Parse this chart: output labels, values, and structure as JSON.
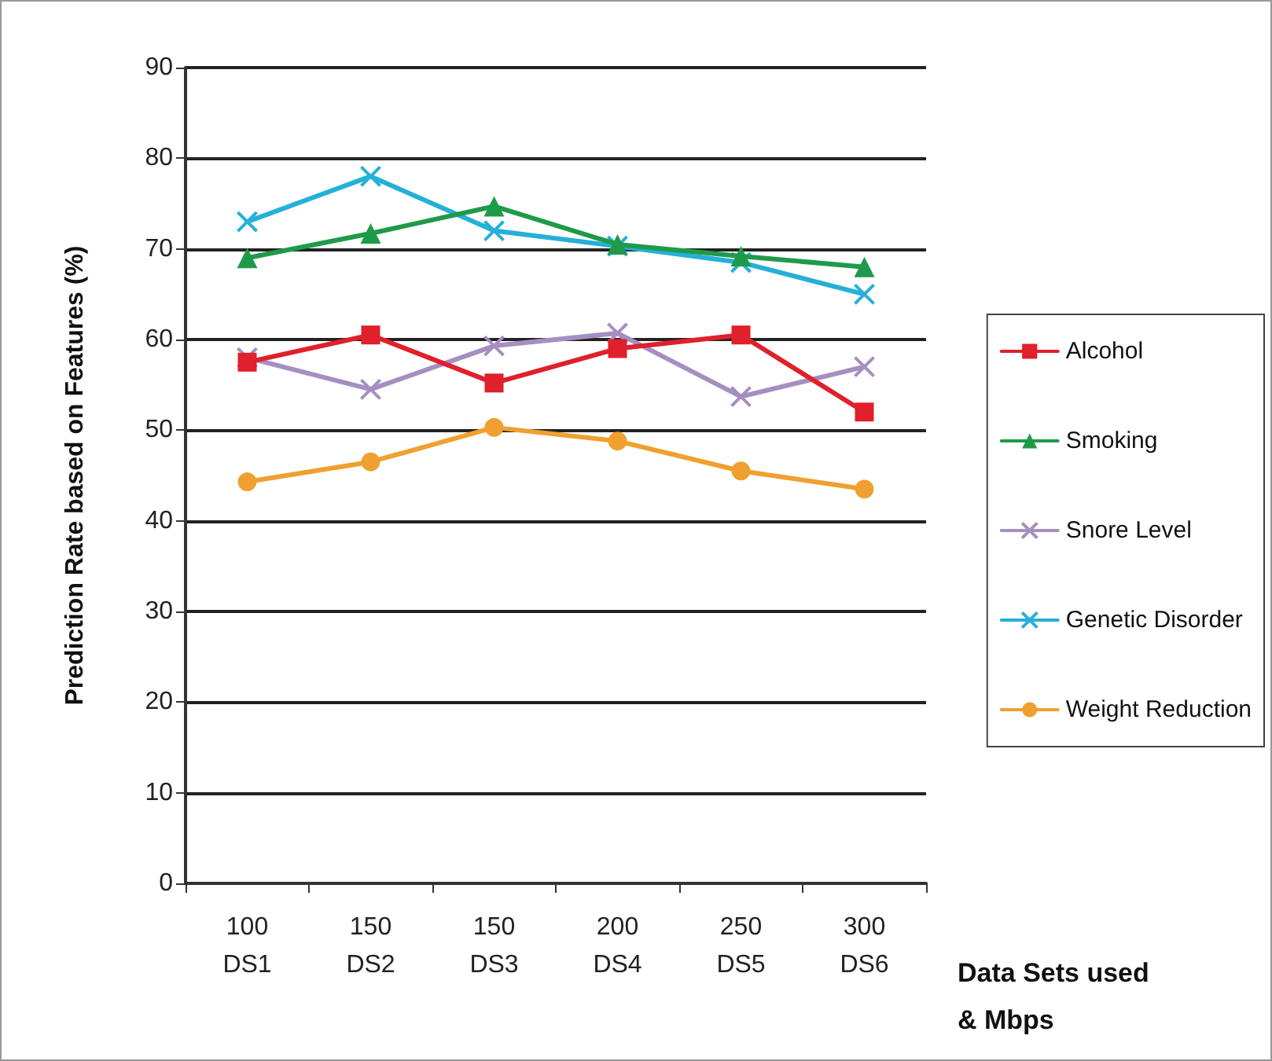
{
  "chart_data": {
    "type": "line",
    "ylabel": "Prediction Rate based on Features (%)",
    "xlabel": "Data Sets used\n& Mbps",
    "categories": [
      "100\nDS1",
      "150\nDS2",
      "150\nDS3",
      "200\nDS4",
      "250\nDS5",
      "300\nDS6"
    ],
    "series": [
      {
        "name": "Alcohol",
        "color": "#e0202a",
        "marker": "square",
        "values": [
          57.5,
          60.5,
          55.2,
          59,
          60.5,
          52
        ]
      },
      {
        "name": "Smoking",
        "color": "#1f9a4a",
        "marker": "triangle",
        "values": [
          69,
          71.7,
          74.7,
          70.5,
          69.2,
          68
        ]
      },
      {
        "name": "Snore Level",
        "color": "#a58fc0",
        "marker": "cross",
        "values": [
          58,
          54.5,
          59.3,
          60.7,
          53.7,
          57
        ]
      },
      {
        "name": "Genetic Disorder",
        "color": "#25b0d8",
        "marker": "cross",
        "values": [
          73,
          78,
          72,
          70.3,
          68.5,
          65
        ]
      },
      {
        "name": "Weight Reduction",
        "color": "#f0a030",
        "marker": "circle",
        "values": [
          44.3,
          46.5,
          50.3,
          48.8,
          45.5,
          43.5
        ]
      }
    ],
    "ylim": [
      0,
      90
    ],
    "yticks": [
      0,
      10,
      20,
      30,
      40,
      50,
      60,
      70,
      80,
      90
    ],
    "grid": "y",
    "legend": "right"
  }
}
